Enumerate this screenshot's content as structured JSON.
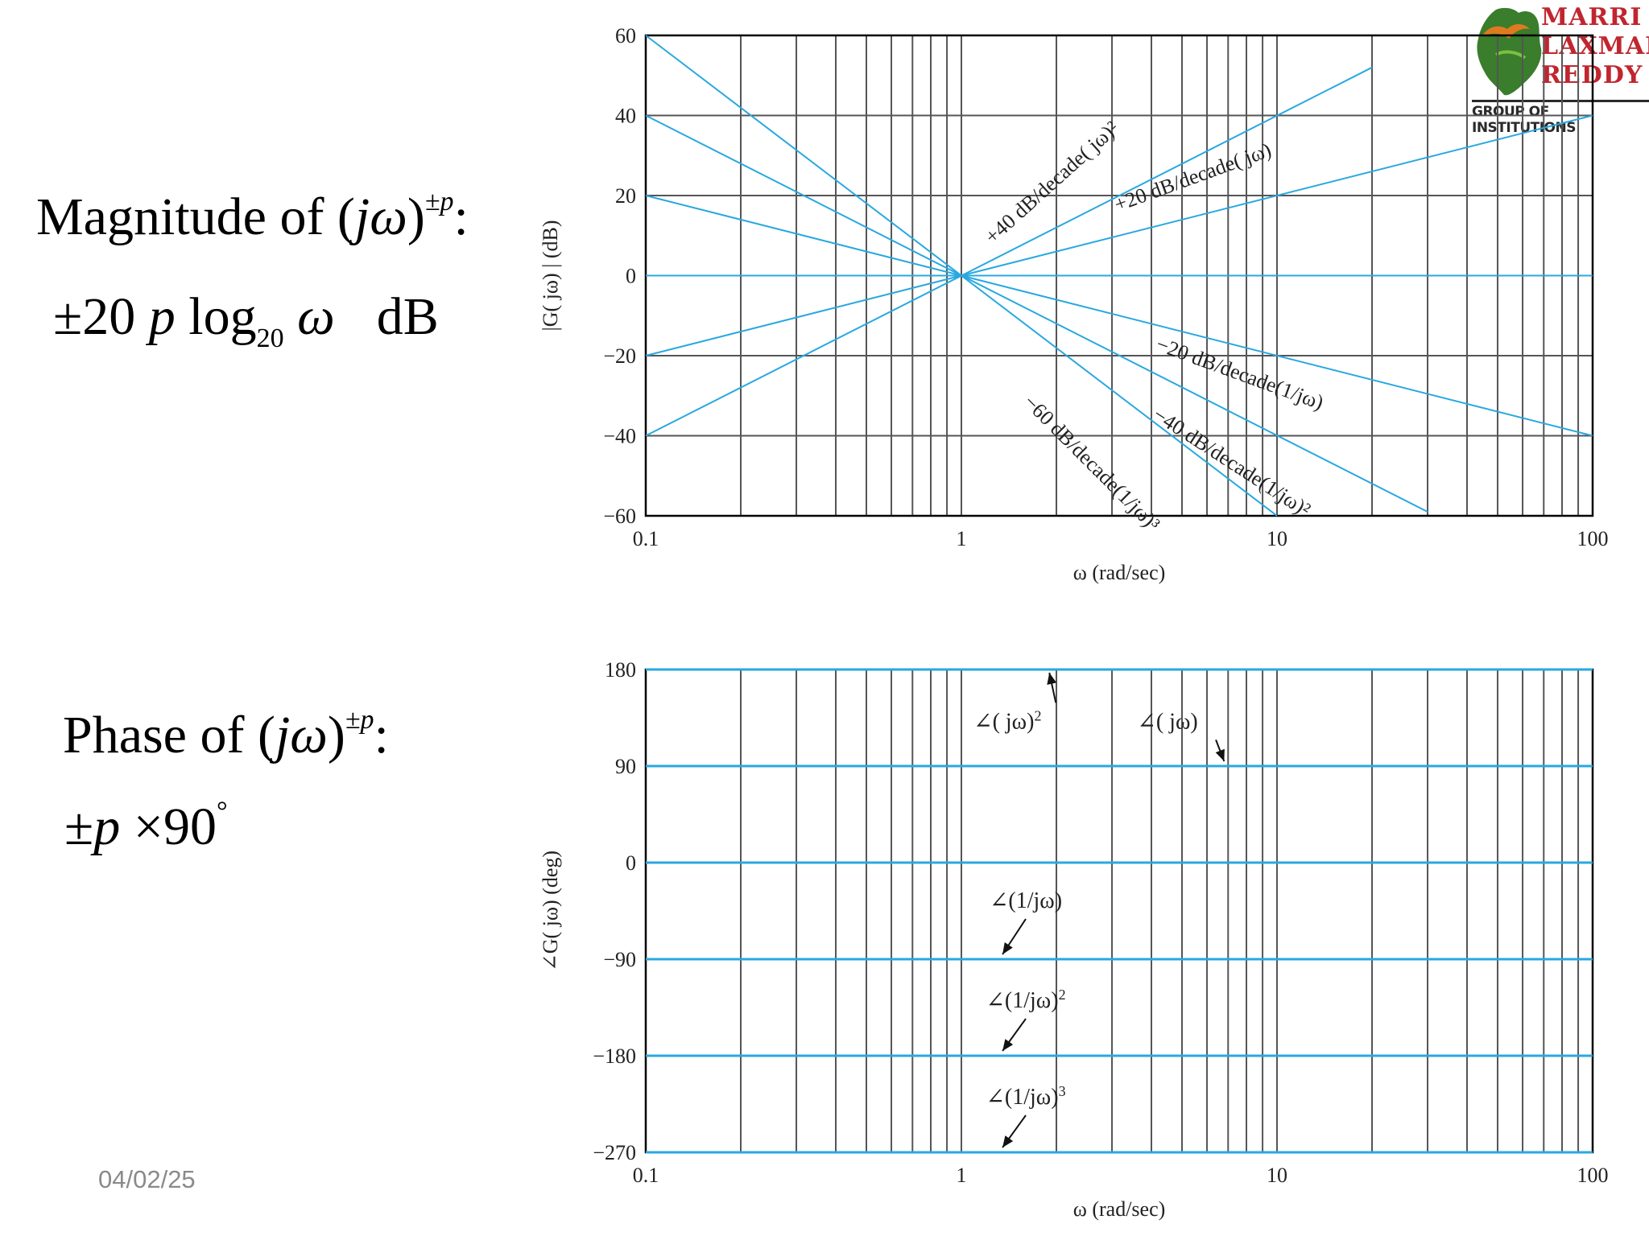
{
  "slide": {
    "magnitude": {
      "label": "Magnitude of (",
      "jw": "jω",
      "close": ")",
      "sup": "±p",
      "colon": ":",
      "formula_pm": "±",
      "formula_num": "20",
      "formula_p": "p",
      "formula_log": "log",
      "formula_sub": "20",
      "formula_w": "ω",
      "formula_unit": "dB"
    },
    "phase": {
      "label": "Phase of (",
      "jw": "jω",
      "close": ")",
      "sup": "±p",
      "colon": ":",
      "formula_pm": "±",
      "formula_p": "p",
      "formula_times": "×",
      "formula_num": "90",
      "formula_deg": "°"
    },
    "date": "04/02/25"
  },
  "logo": {
    "line1": "MARRI",
    "line2": "LAXMAN",
    "line3": "REDDY",
    "tagline": "GROUP OF INSTITUTIONS",
    "colors": {
      "text": "#c0262f",
      "map_green": "#3a7d2c",
      "map_orange": "#e07a1f"
    }
  },
  "colors": {
    "curve": "#29a8e0",
    "grid": "#555555",
    "axis": "#000000"
  },
  "chart_data": [
    {
      "type": "line",
      "title": "",
      "xlabel": "ω (rad/sec)",
      "ylabel": "|G( jω) | (dB)",
      "xscale": "log",
      "xlim": [
        0.1,
        100
      ],
      "ylim": [
        -60,
        60
      ],
      "xticks": [
        {
          "v": 0.1,
          "label": "0.1"
        },
        {
          "v": 1,
          "label": "1"
        },
        {
          "v": 10,
          "label": "10"
        },
        {
          "v": 100,
          "label": "100"
        }
      ],
      "yticks": [
        {
          "v": 60,
          "label": "60"
        },
        {
          "v": 40,
          "label": "40"
        },
        {
          "v": 20,
          "label": "20"
        },
        {
          "v": 0,
          "label": "0"
        },
        {
          "v": -20,
          "label": "−20"
        },
        {
          "v": -40,
          "label": "−40"
        },
        {
          "v": -60,
          "label": "−60"
        }
      ],
      "series": [
        {
          "name": "+40 dB/decade(jω)²",
          "slope": 40,
          "x": [
            0.1,
            20
          ],
          "y": [
            -40,
            52
          ]
        },
        {
          "name": "+20 dB/decade(jω)",
          "slope": 20,
          "x": [
            0.1,
            100
          ],
          "y": [
            -20,
            40
          ]
        },
        {
          "name": "0 dB",
          "slope": 0,
          "x": [
            0.1,
            100
          ],
          "y": [
            0,
            0
          ]
        },
        {
          "name": "−20 dB/decade(1/jω)",
          "slope": -20,
          "x": [
            0.1,
            100
          ],
          "y": [
            20,
            -40
          ]
        },
        {
          "name": "−40 dB/decade(1/jω)²",
          "slope": -40,
          "x": [
            0.1,
            30
          ],
          "y": [
            40,
            -59
          ]
        },
        {
          "name": "−60 dB/decade(1/jω)³",
          "slope": -60,
          "x": [
            0.1,
            10
          ],
          "y": [
            60,
            -60
          ]
        }
      ],
      "annotations": [
        {
          "text": "+40 dB/decade( jω)²",
          "x": 2.0,
          "y": 22,
          "angle": -42
        },
        {
          "text": "+20 dB/decade( jω)",
          "x": 5.5,
          "y": 23,
          "angle": -20
        },
        {
          "text": "−20 dB/decade(1/jω)",
          "x": 7.5,
          "y": -26,
          "angle": 20
        },
        {
          "text": "−40 dB/decade(1/jω)²",
          "x": 7.0,
          "y": -48,
          "angle": 33
        },
        {
          "text": "−60 dB/decade(1/jω)³",
          "x": 2.5,
          "y": -48,
          "angle": 45
        }
      ]
    },
    {
      "type": "line",
      "title": "",
      "xlabel": "ω (rad/sec)",
      "ylabel": "∠G( jω) (deg)",
      "xscale": "log",
      "xlim": [
        0.1,
        100
      ],
      "ylim": [
        -270,
        180
      ],
      "xticks": [
        {
          "v": 0.1,
          "label": "0.1"
        },
        {
          "v": 1,
          "label": "1"
        },
        {
          "v": 10,
          "label": "10"
        },
        {
          "v": 100,
          "label": "100"
        }
      ],
      "yticks": [
        {
          "v": 180,
          "label": "180"
        },
        {
          "v": 90,
          "label": "90"
        },
        {
          "v": 0,
          "label": "0"
        },
        {
          "v": -90,
          "label": "−90"
        },
        {
          "v": -180,
          "label": "−180"
        },
        {
          "v": -270,
          "label": "−270"
        }
      ],
      "series": [
        {
          "name": "∠( jω)²",
          "x": [
            0.1,
            100
          ],
          "y": [
            180,
            180
          ]
        },
        {
          "name": "∠( jω)",
          "x": [
            0.1,
            100
          ],
          "y": [
            90,
            90
          ]
        },
        {
          "name": "0",
          "x": [
            0.1,
            100
          ],
          "y": [
            0,
            0
          ]
        },
        {
          "name": "∠(1/jω)",
          "x": [
            0.1,
            100
          ],
          "y": [
            -90,
            -90
          ]
        },
        {
          "name": "∠(1/jω)²",
          "x": [
            0.1,
            100
          ],
          "y": [
            -180,
            -180
          ]
        },
        {
          "name": "∠(1/jω)³",
          "x": [
            0.1,
            100
          ],
          "y": [
            -270,
            -270
          ]
        }
      ],
      "annotations": [
        {
          "text": "∠( jω)",
          "sup": "2",
          "x": 1.4,
          "y": 125,
          "arrow_to": {
            "x": 1.9,
            "y": 180
          }
        },
        {
          "text": "∠( jω)",
          "sup": "",
          "x": 4.5,
          "y": 125,
          "arrow_to": {
            "x": 6.8,
            "y": 90
          }
        },
        {
          "text": "∠(1/jω)",
          "sup": "",
          "x": 1.6,
          "y": -42,
          "arrow_to": {
            "x": 1.35,
            "y": -90
          }
        },
        {
          "text": "∠(1/jω)",
          "sup": "2",
          "x": 1.6,
          "y": -135,
          "arrow_to": {
            "x": 1.35,
            "y": -180
          }
        },
        {
          "text": "∠(1/jω)",
          "sup": "3",
          "x": 1.6,
          "y": -225,
          "arrow_to": {
            "x": 1.35,
            "y": -270
          }
        }
      ]
    }
  ]
}
